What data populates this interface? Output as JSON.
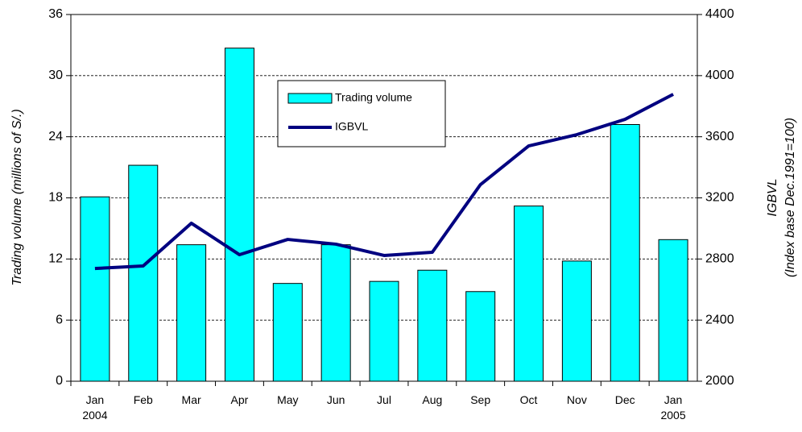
{
  "chart_data": {
    "type": "bar",
    "categories": [
      "Jan\n2004",
      "Feb",
      "Mar",
      "Apr",
      "May",
      "Jun",
      "Jul",
      "Aug",
      "Sep",
      "Oct",
      "Nov",
      "Dec",
      "Jan\n2005"
    ],
    "series": [
      {
        "name": "Trading volume",
        "type": "bar",
        "color": "#00ffff",
        "values": [
          18.1,
          21.2,
          13.4,
          32.7,
          9.6,
          13.4,
          9.8,
          10.9,
          8.8,
          17.2,
          11.8,
          25.2,
          13.9
        ]
      },
      {
        "name": "IGBVL",
        "type": "line",
        "axis": "y2",
        "color": "#000080",
        "values": [
          2738,
          2754,
          3034,
          2828,
          2928,
          2897,
          2823,
          2844,
          3287,
          3540,
          3614,
          3714,
          3878
        ]
      }
    ],
    "y_label": "Trading volume (millions of S/.)",
    "y2_label": [
      "IGBVL",
      "(Index base Dec.1991=100)"
    ],
    "ylim": [
      0,
      36
    ],
    "yticks": [
      0,
      6,
      12,
      18,
      24,
      30,
      36
    ],
    "y2lim": [
      2000,
      4400
    ],
    "y2ticks": [
      2000,
      2400,
      2800,
      3200,
      3600,
      4000,
      4400
    ],
    "grid": true
  }
}
